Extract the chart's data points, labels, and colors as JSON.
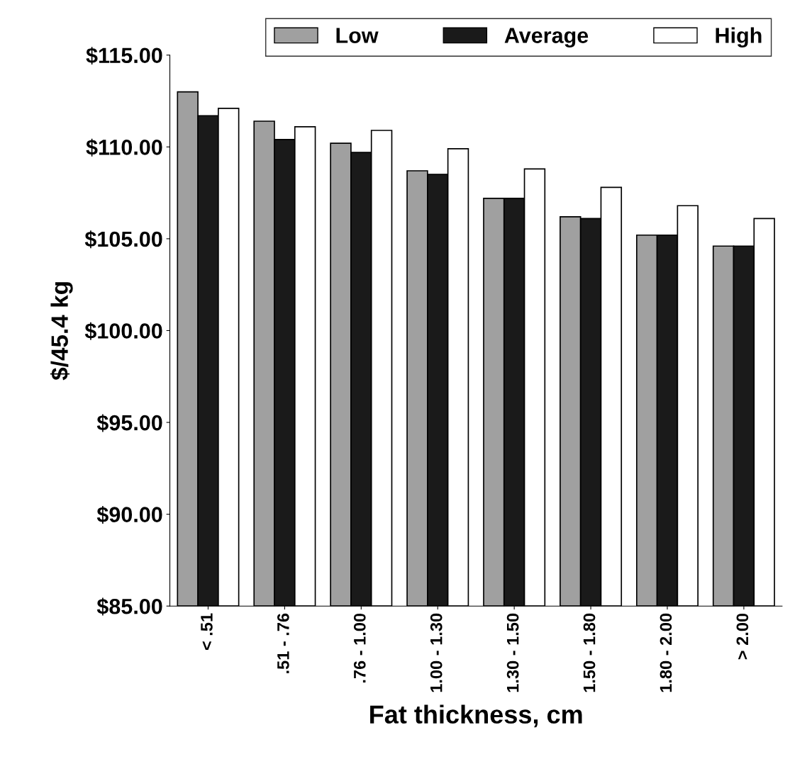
{
  "chart_data": {
    "type": "bar",
    "xlabel": "Fat thickness, cm",
    "ylabel": "$/45.4 kg",
    "categories": [
      "< .51",
      ".51 - .76",
      ".76 - 1.00",
      "1.00 - 1.30",
      "1.30 - 1.50",
      "1.50 - 1.80",
      "1.80 - 2.00",
      "> 2.00"
    ],
    "series": [
      {
        "name": "Low",
        "color": "#a0a0a0",
        "values": [
          113.0,
          111.4,
          110.2,
          108.7,
          107.2,
          106.2,
          105.2,
          104.6
        ]
      },
      {
        "name": "Average",
        "color": "#1a1a1a",
        "values": [
          111.7,
          110.4,
          109.7,
          108.5,
          107.2,
          106.1,
          105.2,
          104.6
        ]
      },
      {
        "name": "High",
        "color": "#ffffff",
        "values": [
          112.1,
          111.1,
          110.9,
          109.9,
          108.8,
          107.8,
          106.8,
          106.1
        ]
      }
    ],
    "ylim": [
      85,
      115
    ],
    "yticks": [
      {
        "value": 85,
        "label": "$85.00"
      },
      {
        "value": 90,
        "label": "$90.00"
      },
      {
        "value": 95,
        "label": "$95.00"
      },
      {
        "value": 100,
        "label": "$100.00"
      },
      {
        "value": 105,
        "label": "$105.00"
      },
      {
        "value": 110,
        "label": "$110.00"
      },
      {
        "value": 115,
        "label": "$115.00"
      }
    ],
    "grid": false,
    "legend": "top"
  }
}
